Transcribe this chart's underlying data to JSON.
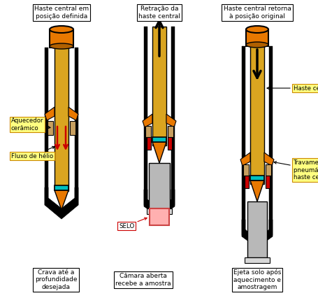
{
  "title1": "Haste central em\nposição definida",
  "title2": "Retração da\nhaste central",
  "title3": "Haste central retorna\nà posição original",
  "caption1": "Crava até a\nprofundidade\ndesejada",
  "caption2": "Câmara aberta\nrecebe a amostra",
  "caption3": "Ejeta solo após\naquecimento e\namostragem",
  "label_aquecedor": "Aquecedor\ncerâmico",
  "label_fluxo": "Fluxo de hélio",
  "label_selo": "SELO",
  "label_haste": "Haste central",
  "label_trav": "Travamento\npneumático da\nhaste central",
  "gold": "#DAA520",
  "orange": "#E87800",
  "cyan": "#00BFBF",
  "red": "#CC0000",
  "pink": "#FFB0B0",
  "silver": "#B8B8B8",
  "black": "#000000",
  "white": "#FFFFFF",
  "cream": "#FFFFC0",
  "label_bg": "#FFFF80",
  "label_border": "#CC8800"
}
